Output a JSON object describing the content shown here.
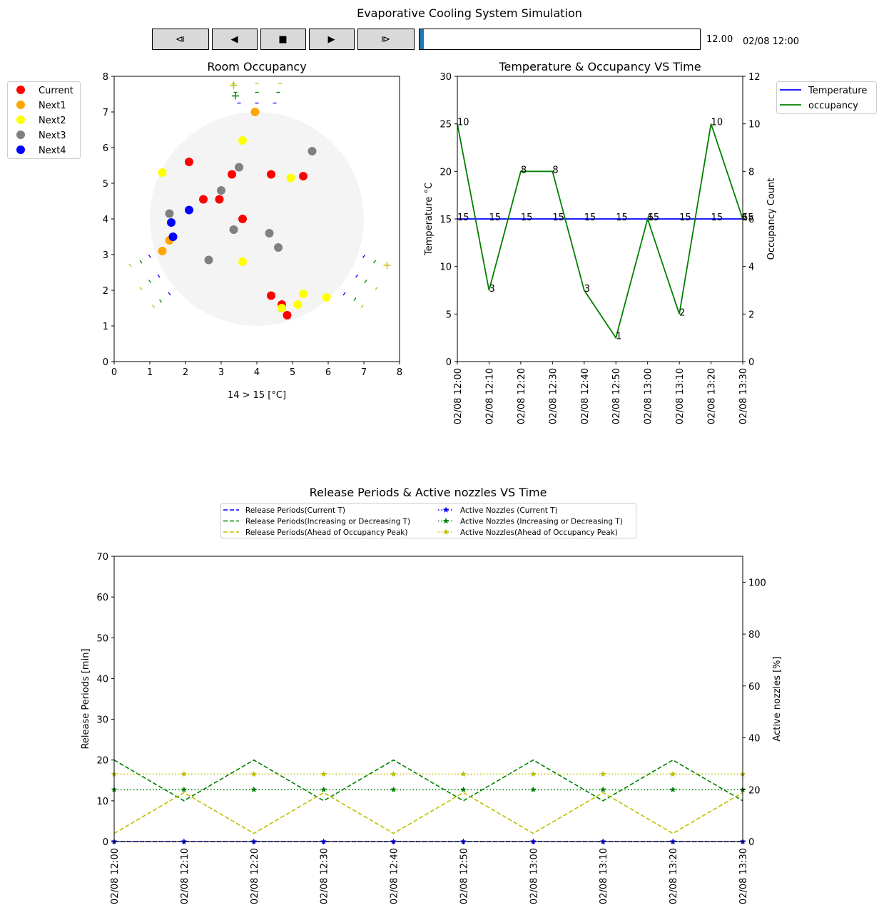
{
  "title": "Evaporative Cooling System Simulation",
  "controls": {
    "buttons": [
      {
        "name": "step-back-button",
        "label": "⧏"
      },
      {
        "name": "play-reverse-button",
        "label": "◀"
      },
      {
        "name": "stop-button",
        "label": "■"
      },
      {
        "name": "play-button",
        "label": "▶"
      },
      {
        "name": "step-forward-button",
        "label": "⧐"
      }
    ],
    "slider": {
      "value_label": "12.00",
      "time_label": "02/08 12:00",
      "fraction": 0.012,
      "fill_color": "#1f77b4"
    }
  },
  "chart_data": [
    {
      "id": "occupancy",
      "type": "scatter",
      "title": "Room Occupancy",
      "xlabel": "14 > 15 [°C]",
      "ylabel": "",
      "xlim": [
        0,
        8
      ],
      "ylim": [
        0,
        8
      ],
      "xticks": [
        "0",
        "1",
        "2",
        "3",
        "4",
        "5",
        "6",
        "7",
        "8"
      ],
      "yticks": [
        "0",
        "1",
        "2",
        "3",
        "4",
        "5",
        "6",
        "7",
        "8"
      ],
      "legend": "outside-upper-left",
      "room_circle": {
        "cx": 4,
        "cy": 4,
        "r": 3,
        "color": "#f4f4f4"
      },
      "series": [
        {
          "name": "Current",
          "color": "#ff0000",
          "points": [
            [
              2.1,
              5.6
            ],
            [
              3.3,
              5.25
            ],
            [
              4.4,
              5.25
            ],
            [
              5.3,
              5.2
            ],
            [
              2.5,
              4.55
            ],
            [
              2.95,
              4.55
            ],
            [
              3.6,
              4.0
            ],
            [
              4.4,
              1.85
            ],
            [
              4.7,
              1.6
            ],
            [
              4.85,
              1.3
            ]
          ]
        },
        {
          "name": "Next1",
          "color": "#ffa500",
          "points": [
            [
              3.95,
              7.0
            ],
            [
              1.55,
              3.4
            ],
            [
              1.35,
              3.1
            ]
          ]
        },
        {
          "name": "Next2",
          "color": "#ffff00",
          "points": [
            [
              3.6,
              6.2
            ],
            [
              1.35,
              5.3
            ],
            [
              4.95,
              5.15
            ],
            [
              3.6,
              2.8
            ],
            [
              5.3,
              1.9
            ],
            [
              5.95,
              1.8
            ],
            [
              5.15,
              1.6
            ],
            [
              4.7,
              1.5
            ]
          ]
        },
        {
          "name": "Next3",
          "color": "#808080",
          "points": [
            [
              5.55,
              5.9
            ],
            [
              3.5,
              5.45
            ],
            [
              3.0,
              4.8
            ],
            [
              1.55,
              4.15
            ],
            [
              3.35,
              3.7
            ],
            [
              4.35,
              3.6
            ],
            [
              4.6,
              3.2
            ],
            [
              2.65,
              2.85
            ]
          ]
        },
        {
          "name": "Next4",
          "color": "#0000ff",
          "points": [
            [
              2.1,
              4.25
            ],
            [
              1.6,
              3.9
            ],
            [
              1.65,
              3.5
            ]
          ]
        }
      ],
      "nozzle_marks": {
        "top": [
          {
            "x": 3.5,
            "y": 7.25,
            "color": "#0000ff"
          },
          {
            "x": 4.0,
            "y": 7.25,
            "color": "#0000ff"
          },
          {
            "x": 4.5,
            "y": 7.25,
            "color": "#0000ff"
          },
          {
            "x": 3.4,
            "y": 7.55,
            "color": "#008000"
          },
          {
            "x": 4.0,
            "y": 7.55,
            "color": "#008000"
          },
          {
            "x": 4.6,
            "y": 7.55,
            "color": "#008000"
          },
          {
            "x": 3.35,
            "y": 7.8,
            "color": "#bfbf00"
          },
          {
            "x": 4.0,
            "y": 7.8,
            "color": "#bfbf00"
          },
          {
            "x": 4.65,
            "y": 7.8,
            "color": "#bfbf00"
          }
        ],
        "left": [
          {
            "x": 1.0,
            "y": 2.95,
            "color": "#0000ff"
          },
          {
            "x": 1.25,
            "y": 2.4,
            "color": "#0000ff"
          },
          {
            "x": 1.55,
            "y": 1.9,
            "color": "#0000ff"
          },
          {
            "x": 0.75,
            "y": 2.8,
            "color": "#008000"
          },
          {
            "x": 1.0,
            "y": 2.25,
            "color": "#008000"
          },
          {
            "x": 1.3,
            "y": 1.7,
            "color": "#008000"
          },
          {
            "x": 0.45,
            "y": 2.7,
            "color": "#bfbf00"
          },
          {
            "x": 0.75,
            "y": 2.05,
            "color": "#bfbf00"
          },
          {
            "x": 1.1,
            "y": 1.55,
            "color": "#bfbf00"
          }
        ],
        "right": [
          {
            "x": 7.0,
            "y": 2.95,
            "color": "#0000ff"
          },
          {
            "x": 6.8,
            "y": 2.4,
            "color": "#0000ff"
          },
          {
            "x": 6.45,
            "y": 1.9,
            "color": "#0000ff"
          },
          {
            "x": 7.3,
            "y": 2.8,
            "color": "#008000"
          },
          {
            "x": 7.05,
            "y": 2.25,
            "color": "#008000"
          },
          {
            "x": 6.75,
            "y": 1.75,
            "color": "#008000"
          },
          {
            "x": 7.35,
            "y": 2.05,
            "color": "#bfbf00"
          },
          {
            "x": 6.95,
            "y": 1.55,
            "color": "#bfbf00"
          }
        ],
        "plus": [
          {
            "x": 3.35,
            "y": 7.75,
            "color": "#bfbf00"
          },
          {
            "x": 3.4,
            "y": 7.45,
            "color": "#008000"
          },
          {
            "x": 7.65,
            "y": 2.7,
            "color": "#bfbf00"
          }
        ]
      }
    },
    {
      "id": "temp-occ",
      "type": "line",
      "title": "Temperature & Occupancy VS Time",
      "ylabel": "Temperature °C",
      "y2label": "Occupancy Count",
      "ylim": [
        0,
        30
      ],
      "y2lim": [
        0,
        12
      ],
      "yticks": [
        "0",
        "5",
        "10",
        "15",
        "20",
        "25",
        "30"
      ],
      "y2ticks": [
        "0",
        "2",
        "4",
        "6",
        "8",
        "10",
        "12"
      ],
      "x": [
        "02/08 12:00",
        "02/08 12:10",
        "02/08 12:20",
        "02/08 12:30",
        "02/08 12:40",
        "02/08 12:50",
        "02/08 13:00",
        "02/08 13:10",
        "02/08 13:20",
        "02/08 13:30"
      ],
      "legend": "outside-upper-right",
      "series": [
        {
          "name": "Temperature",
          "color": "#0000ff",
          "axis": "left",
          "values": [
            15,
            15,
            15,
            15,
            15,
            15,
            15,
            15,
            15,
            15
          ],
          "labels": [
            "15",
            "15",
            "15",
            "15",
            "15",
            "15",
            "15",
            "15",
            "15",
            "15"
          ]
        },
        {
          "name": "occupancy",
          "color": "#008000",
          "axis": "right",
          "values": [
            10,
            3,
            8,
            8,
            3,
            1,
            6,
            2,
            10,
            6
          ],
          "labels": [
            "10",
            "3",
            "8",
            "8",
            "3",
            "1",
            "6",
            "2",
            "10",
            "6"
          ]
        }
      ]
    },
    {
      "id": "release",
      "type": "line",
      "title": "Release Periods & Active nozzles VS Time",
      "ylabel": "Release Periods [min]",
      "y2label": "Active nozzles [%]",
      "ylim": [
        0,
        70
      ],
      "y2lim": [
        0,
        110
      ],
      "yticks": [
        "0",
        "10",
        "20",
        "30",
        "40",
        "50",
        "60",
        "70"
      ],
      "y2ticks": [
        "0",
        "20",
        "40",
        "60",
        "80",
        "100"
      ],
      "x": [
        "02/08 12:00",
        "02/08 12:10",
        "02/08 12:20",
        "02/08 12:30",
        "02/08 12:40",
        "02/08 12:50",
        "02/08 13:00",
        "02/08 13:10",
        "02/08 13:20",
        "02/08 13:30"
      ],
      "legend": "upper-center",
      "series": [
        {
          "name": "Release Periods(Current T)",
          "color": "#0000ff",
          "axis": "left",
          "style": "dashed",
          "values": [
            0,
            0,
            0,
            0,
            0,
            0,
            0,
            0,
            0,
            0
          ]
        },
        {
          "name": "Release Periods(Increasing or Decreasing T)",
          "color": "#008000",
          "axis": "left",
          "style": "dashed",
          "values": [
            20,
            10,
            20,
            10,
            20,
            10,
            20,
            10,
            20,
            10
          ]
        },
        {
          "name": "Release Periods(Ahead of Occupancy Peak)",
          "color": "#bfbf00",
          "axis": "left",
          "style": "dashed",
          "values": [
            2,
            12,
            2,
            12,
            2,
            12,
            2,
            12,
            2,
            12
          ]
        },
        {
          "name": "Active Nozzles (Current T)",
          "color": "#0000ff",
          "axis": "right",
          "style": "dotted-star",
          "values": [
            0,
            0,
            0,
            0,
            0,
            0,
            0,
            0,
            0,
            0
          ]
        },
        {
          "name": "Active Nozzles (Increasing or Decreasing T)",
          "color": "#008000",
          "axis": "right",
          "style": "dotted-star",
          "values": [
            20,
            20,
            20,
            20,
            20,
            20,
            20,
            20,
            20,
            20
          ]
        },
        {
          "name": "Active Nozzles(Ahead of Occupancy Peak)",
          "color": "#bfbf00",
          "axis": "right",
          "style": "dotted-star",
          "values": [
            26,
            26,
            26,
            26,
            26,
            26,
            26,
            26,
            26,
            26
          ]
        }
      ]
    }
  ]
}
